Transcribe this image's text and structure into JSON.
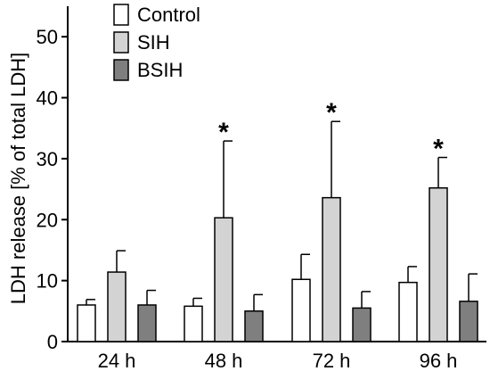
{
  "chart_data": {
    "type": "bar",
    "title": "",
    "ylabel": "LDH release [% of total LDH]",
    "xlabel": "",
    "categories": [
      "24 h",
      "48 h",
      "72 h",
      "96 h"
    ],
    "ylim": [
      0,
      55
    ],
    "yticks": [
      0,
      10,
      20,
      30,
      40,
      50
    ],
    "grid": false,
    "legend_position": "top-left",
    "series": [
      {
        "name": "Control",
        "color": "#ffffff",
        "values": [
          6.0,
          5.8,
          10.2,
          9.7
        ],
        "errors": [
          0.9,
          1.3,
          4.1,
          2.6
        ]
      },
      {
        "name": "SIH",
        "color": "#d3d3d3",
        "values": [
          11.4,
          20.3,
          23.6,
          25.2
        ],
        "errors": [
          3.5,
          12.6,
          12.5,
          5.0
        ]
      },
      {
        "name": "BSIH",
        "color": "#7f7f7f",
        "values": [
          6.0,
          5.0,
          5.5,
          6.6
        ],
        "errors": [
          2.4,
          2.7,
          2.7,
          4.5
        ]
      }
    ],
    "annotations": [
      {
        "text": "*",
        "category": "48 h",
        "series": "SIH"
      },
      {
        "text": "*",
        "category": "72 h",
        "series": "SIH"
      },
      {
        "text": "*",
        "category": "96 h",
        "series": "SIH"
      }
    ]
  }
}
